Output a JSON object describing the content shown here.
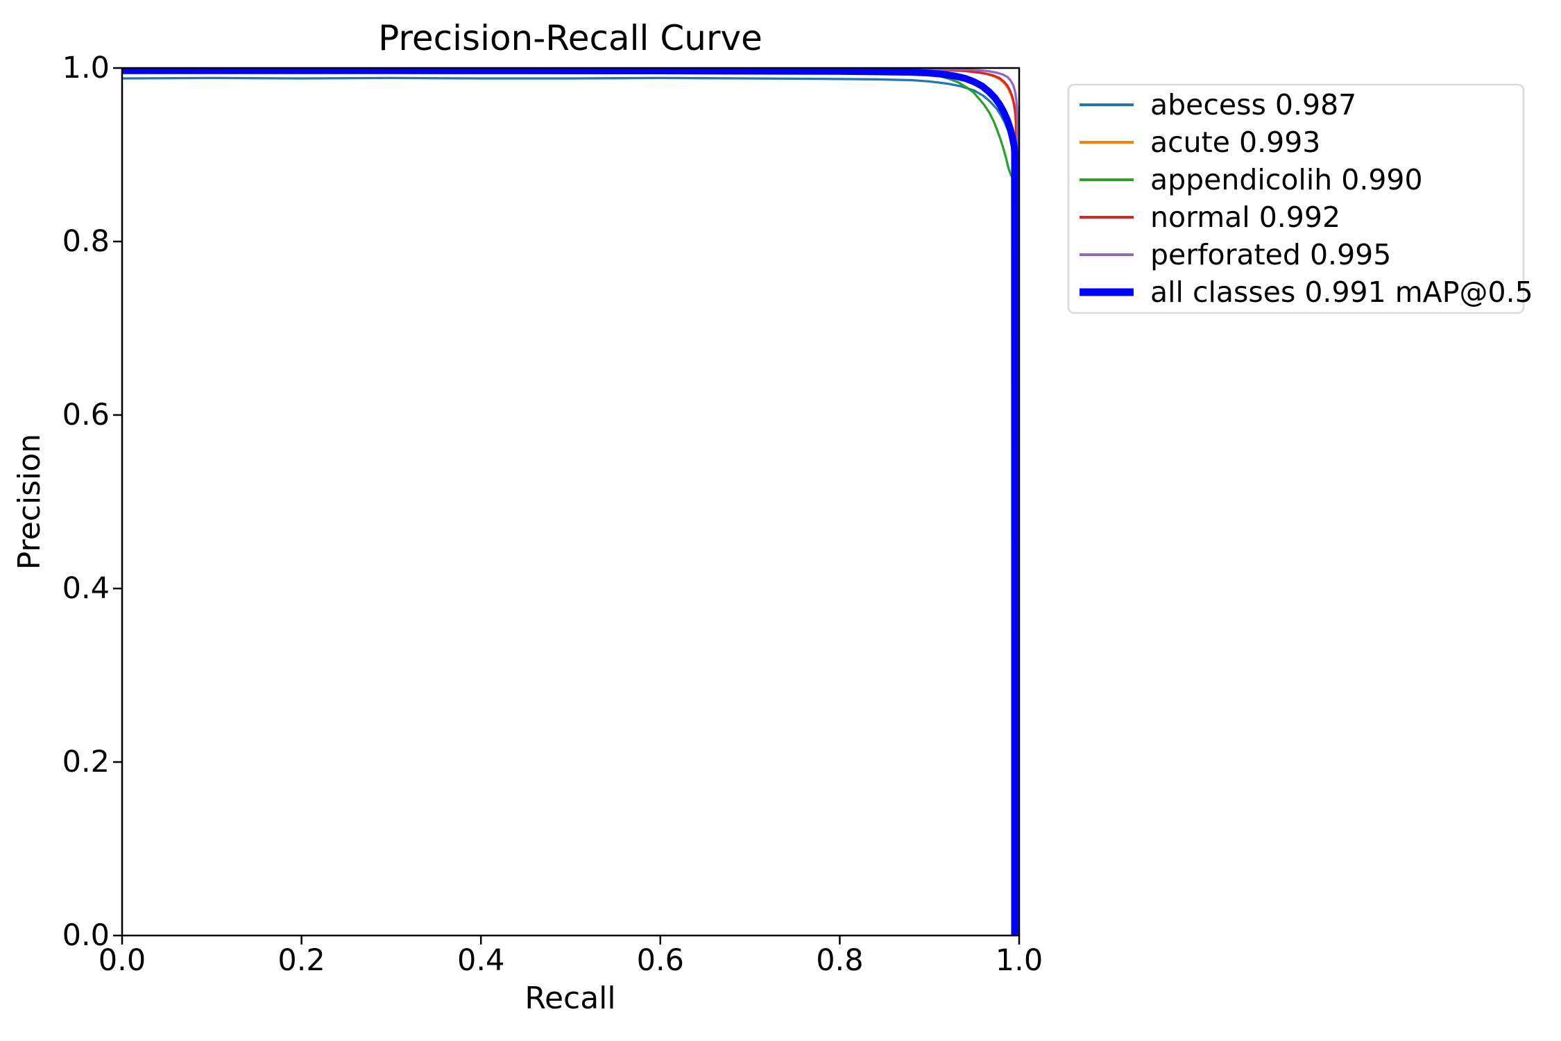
{
  "chart_data": {
    "type": "line",
    "title": "Precision-Recall Curve",
    "xlabel": "Recall",
    "ylabel": "Precision",
    "xlim": [
      0.0,
      1.0
    ],
    "ylim": [
      0.0,
      1.0
    ],
    "xticks": [
      "0.0",
      "0.2",
      "0.4",
      "0.6",
      "0.8",
      "1.0"
    ],
    "yticks": [
      "0.0",
      "0.2",
      "0.4",
      "0.6",
      "0.8",
      "1.0"
    ],
    "grid": false,
    "background": "#ffffff",
    "spine_color": "#000000",
    "legend": {
      "position": "outside-upper-right",
      "border_color": "#d9d9d9",
      "fill": "#ffffff"
    },
    "series": [
      {
        "name": "abecess",
        "label": "abecess 0.987",
        "ap": 0.987,
        "color": "#1f77b4",
        "linewidth": 3.3,
        "points": [
          [
            0.0,
            0.988
          ],
          [
            0.1,
            0.9885
          ],
          [
            0.2,
            0.988
          ],
          [
            0.3,
            0.9885
          ],
          [
            0.4,
            0.988
          ],
          [
            0.5,
            0.988
          ],
          [
            0.6,
            0.9885
          ],
          [
            0.7,
            0.988
          ],
          [
            0.78,
            0.9875
          ],
          [
            0.84,
            0.987
          ],
          [
            0.88,
            0.986
          ],
          [
            0.9,
            0.9845
          ],
          [
            0.92,
            0.982
          ],
          [
            0.935,
            0.979
          ],
          [
            0.95,
            0.974
          ],
          [
            0.96,
            0.968
          ],
          [
            0.968,
            0.961
          ],
          [
            0.975,
            0.953
          ],
          [
            0.98,
            0.945
          ],
          [
            0.984,
            0.937
          ],
          [
            0.988,
            0.927
          ],
          [
            0.99,
            0.919
          ],
          [
            0.992,
            0.91
          ],
          [
            0.9925,
            0.905
          ],
          [
            0.9925,
            0.0
          ]
        ]
      },
      {
        "name": "acute",
        "label": "acute 0.993",
        "ap": 0.993,
        "color": "#ff7f0e",
        "linewidth": 3.3,
        "points": [
          [
            0.0,
            0.999
          ],
          [
            0.3,
            0.999
          ],
          [
            0.6,
            0.9985
          ],
          [
            0.85,
            0.998
          ],
          [
            0.93,
            0.9975
          ],
          [
            0.948,
            0.996
          ],
          [
            0.958,
            0.9945
          ],
          [
            0.966,
            0.9925
          ],
          [
            0.973,
            0.99
          ],
          [
            0.979,
            0.9865
          ],
          [
            0.984,
            0.982
          ],
          [
            0.988,
            0.976
          ],
          [
            0.991,
            0.969
          ],
          [
            0.9935,
            0.961
          ],
          [
            0.9952,
            0.951
          ],
          [
            0.9962,
            0.938
          ],
          [
            0.9962,
            0.0
          ]
        ]
      },
      {
        "name": "appendicolih",
        "label": "appendicolih 0.990",
        "ap": 0.99,
        "color": "#2ca02c",
        "linewidth": 3.3,
        "points": [
          [
            0.0,
            0.998
          ],
          [
            0.3,
            0.998
          ],
          [
            0.6,
            0.9975
          ],
          [
            0.82,
            0.997
          ],
          [
            0.875,
            0.9955
          ],
          [
            0.9,
            0.993
          ],
          [
            0.912,
            0.9905
          ],
          [
            0.922,
            0.9875
          ],
          [
            0.932,
            0.9835
          ],
          [
            0.941,
            0.978
          ],
          [
            0.949,
            0.972
          ],
          [
            0.955,
            0.965
          ],
          [
            0.961,
            0.9575
          ],
          [
            0.9665,
            0.949
          ],
          [
            0.9715,
            0.939
          ],
          [
            0.9755,
            0.9285
          ],
          [
            0.979,
            0.9185
          ],
          [
            0.9825,
            0.907
          ],
          [
            0.9855,
            0.8955
          ],
          [
            0.988,
            0.885
          ],
          [
            0.9905,
            0.8775
          ],
          [
            0.9922,
            0.874
          ],
          [
            0.9925,
            0.0
          ]
        ]
      },
      {
        "name": "normal",
        "label": "normal 0.992",
        "ap": 0.992,
        "color": "#d62728",
        "linewidth": 3.3,
        "points": [
          [
            0.0,
            0.999
          ],
          [
            0.3,
            0.999
          ],
          [
            0.6,
            0.9985
          ],
          [
            0.85,
            0.998
          ],
          [
            0.92,
            0.9975
          ],
          [
            0.94,
            0.9965
          ],
          [
            0.953,
            0.995
          ],
          [
            0.963,
            0.9935
          ],
          [
            0.971,
            0.9915
          ],
          [
            0.978,
            0.9885
          ],
          [
            0.983,
            0.9845
          ],
          [
            0.987,
            0.9795
          ],
          [
            0.99,
            0.9735
          ],
          [
            0.9925,
            0.9665
          ],
          [
            0.9945,
            0.9575
          ],
          [
            0.9958,
            0.9475
          ],
          [
            0.9966,
            0.9365
          ],
          [
            0.9966,
            0.0
          ]
        ]
      },
      {
        "name": "perforated",
        "label": "perforated 0.995",
        "ap": 0.995,
        "color": "#9467bd",
        "linewidth": 3.3,
        "points": [
          [
            0.0,
            0.9992
          ],
          [
            0.3,
            0.9992
          ],
          [
            0.6,
            0.999
          ],
          [
            0.88,
            0.9985
          ],
          [
            0.945,
            0.998
          ],
          [
            0.958,
            0.9972
          ],
          [
            0.968,
            0.996
          ],
          [
            0.9755,
            0.9945
          ],
          [
            0.982,
            0.9925
          ],
          [
            0.987,
            0.9895
          ],
          [
            0.9905,
            0.9855
          ],
          [
            0.9935,
            0.98
          ],
          [
            0.9955,
            0.9725
          ],
          [
            0.9968,
            0.9635
          ],
          [
            0.9976,
            0.9525
          ],
          [
            0.998,
            0.9395
          ],
          [
            0.998,
            0.0
          ]
        ]
      },
      {
        "name": "all_classes",
        "label": "all classes 0.991 mAP@0.5",
        "ap": 0.991,
        "color": "#0000ff",
        "linewidth": 10,
        "points": [
          [
            0.0,
            0.997
          ],
          [
            0.3,
            0.997
          ],
          [
            0.6,
            0.9968
          ],
          [
            0.8,
            0.9962
          ],
          [
            0.88,
            0.9952
          ],
          [
            0.9,
            0.9942
          ],
          [
            0.915,
            0.9928
          ],
          [
            0.928,
            0.9908
          ],
          [
            0.94,
            0.988
          ],
          [
            0.95,
            0.984
          ],
          [
            0.959,
            0.979
          ],
          [
            0.9665,
            0.9725
          ],
          [
            0.973,
            0.9655
          ],
          [
            0.9785,
            0.9575
          ],
          [
            0.983,
            0.949
          ],
          [
            0.987,
            0.9395
          ],
          [
            0.99,
            0.93
          ],
          [
            0.9925,
            0.92
          ],
          [
            0.9945,
            0.9095
          ],
          [
            0.995,
            0.903
          ],
          [
            0.995,
            0.0
          ]
        ]
      }
    ]
  }
}
